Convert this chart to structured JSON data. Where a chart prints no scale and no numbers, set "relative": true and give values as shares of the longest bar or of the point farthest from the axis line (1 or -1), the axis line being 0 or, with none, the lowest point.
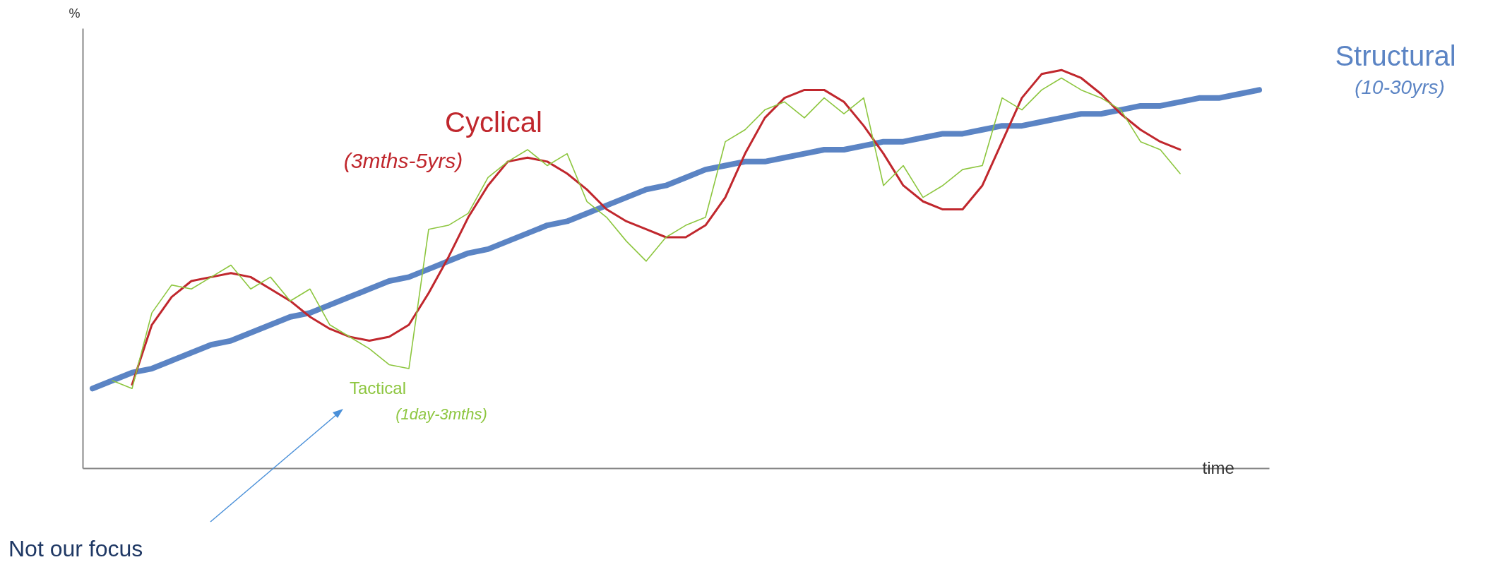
{
  "chart_data": {
    "type": "line",
    "relative": true,
    "xlabel": "time",
    "ylabel": "%",
    "categories": [
      null,
      null,
      null,
      null,
      null,
      null,
      null,
      null,
      null,
      null,
      null,
      null,
      null,
      null,
      null,
      null,
      null,
      null,
      null,
      null,
      null,
      null,
      null,
      null,
      null,
      null,
      null,
      null,
      null,
      null,
      null,
      null,
      null,
      null,
      null,
      null,
      null,
      null,
      null,
      null,
      null,
      null,
      null,
      null,
      null,
      null,
      null,
      null,
      null,
      null,
      null,
      null,
      null,
      null,
      null,
      null,
      null,
      null,
      null,
      null
    ],
    "series": [
      {
        "name": "Structural",
        "color": "#5b84c4",
        "values": [
          0.2,
          0.22,
          0.24,
          0.25,
          0.27,
          0.29,
          0.31,
          0.32,
          0.34,
          0.36,
          0.38,
          0.39,
          0.41,
          0.43,
          0.45,
          0.47,
          0.48,
          0.5,
          0.52,
          0.54,
          0.55,
          0.57,
          0.59,
          0.61,
          0.62,
          0.64,
          0.66,
          0.68,
          0.7,
          0.71,
          0.73,
          0.75,
          0.76,
          0.77,
          0.77,
          0.78,
          0.79,
          0.8,
          0.8,
          0.81,
          0.82,
          0.82,
          0.83,
          0.84,
          0.84,
          0.85,
          0.86,
          0.86,
          0.87,
          0.88,
          0.89,
          0.89,
          0.9,
          0.91,
          0.91,
          0.92,
          0.93,
          0.93,
          0.94,
          0.95
        ]
      },
      {
        "name": "Cyclical",
        "color": "#c0272d",
        "values": [
          null,
          null,
          0.21,
          0.36,
          0.43,
          0.47,
          0.48,
          0.49,
          0.48,
          0.45,
          0.42,
          0.38,
          0.35,
          0.33,
          0.32,
          0.33,
          0.36,
          0.44,
          0.53,
          0.63,
          0.71,
          0.77,
          0.78,
          0.77,
          0.74,
          0.7,
          0.65,
          0.62,
          0.6,
          0.58,
          0.58,
          0.61,
          0.68,
          0.79,
          0.88,
          0.93,
          0.95,
          0.95,
          0.92,
          0.86,
          0.79,
          0.71,
          0.67,
          0.65,
          0.65,
          0.71,
          0.82,
          0.93,
          0.99,
          1,
          0.98,
          0.94,
          0.89,
          0.85,
          0.82,
          0.8,
          null,
          null,
          null,
          null
        ]
      },
      {
        "name": "Tactical",
        "color": "#8dc63f",
        "values": [
          null,
          0.22,
          0.2,
          0.39,
          0.46,
          0.45,
          0.48,
          0.51,
          0.45,
          0.48,
          0.42,
          0.45,
          0.36,
          0.33,
          0.3,
          0.26,
          0.25,
          0.6,
          0.61,
          0.64,
          0.73,
          0.77,
          0.8,
          0.76,
          0.79,
          0.67,
          0.63,
          0.57,
          0.52,
          0.58,
          0.61,
          0.63,
          0.82,
          0.85,
          0.9,
          0.92,
          0.88,
          0.93,
          0.89,
          0.93,
          0.71,
          0.76,
          0.68,
          0.71,
          0.75,
          0.76,
          0.93,
          0.9,
          0.95,
          0.98,
          0.95,
          0.93,
          0.9,
          0.82,
          0.8,
          0.74,
          null,
          null,
          null,
          null
        ]
      }
    ],
    "annotations": [
      "(10-30yrs)",
      "(3mths-5yrs)",
      "(1day-3mths)",
      "Not our focus"
    ]
  }
}
